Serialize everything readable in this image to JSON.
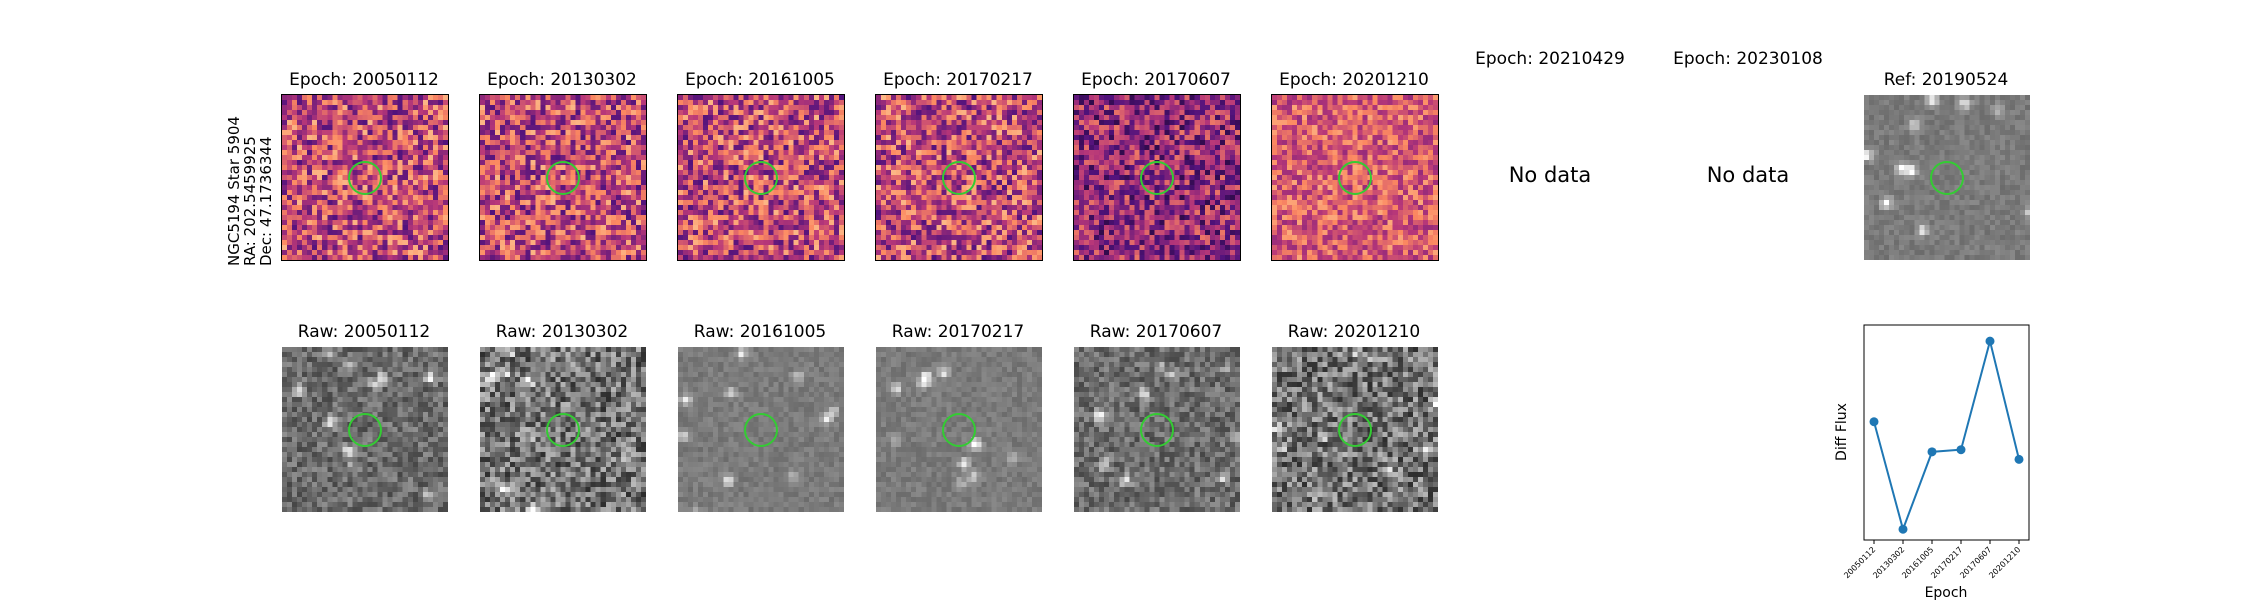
{
  "object": {
    "name": "NGC5194 Star 5904",
    "ra": "RA: 202.5459925",
    "dec": "Dec: 47.1736344"
  },
  "epoch_panels": [
    {
      "title": "Epoch: 20050112",
      "has_data": true
    },
    {
      "title": "Epoch: 20130302",
      "has_data": true
    },
    {
      "title": "Epoch: 20161005",
      "has_data": true
    },
    {
      "title": "Epoch: 20170217",
      "has_data": true
    },
    {
      "title": "Epoch: 20170607",
      "has_data": true
    },
    {
      "title": "Epoch: 20201210",
      "has_data": true
    },
    {
      "title": "Epoch: 20210429",
      "has_data": false,
      "no_data_text": "No data"
    },
    {
      "title": "Epoch: 20230108",
      "has_data": false,
      "no_data_text": "No data"
    }
  ],
  "ref_panel": {
    "title": "Ref: 20190524"
  },
  "raw_panels": [
    {
      "title": "Raw: 20050112"
    },
    {
      "title": "Raw: 20130302"
    },
    {
      "title": "Raw: 20161005"
    },
    {
      "title": "Raw: 20170217"
    },
    {
      "title": "Raw: 20170607"
    },
    {
      "title": "Raw: 20201210"
    }
  ],
  "colors": {
    "aperture": "#33cc33",
    "series": "#1f77b4"
  },
  "chart_data": {
    "type": "line",
    "title": "",
    "xlabel": "Epoch",
    "ylabel": "Diff Flux",
    "categories": [
      "20050112",
      "20130302",
      "20161005",
      "20170217",
      "20170607",
      "20201210"
    ],
    "series": [
      {
        "name": "Diff Flux",
        "values": [
          0.55,
          -0.45,
          0.27,
          0.29,
          1.3,
          0.2
        ]
      }
    ],
    "ylim": [
      -0.55,
      1.45
    ],
    "yticks_shown": false,
    "markers": true
  }
}
